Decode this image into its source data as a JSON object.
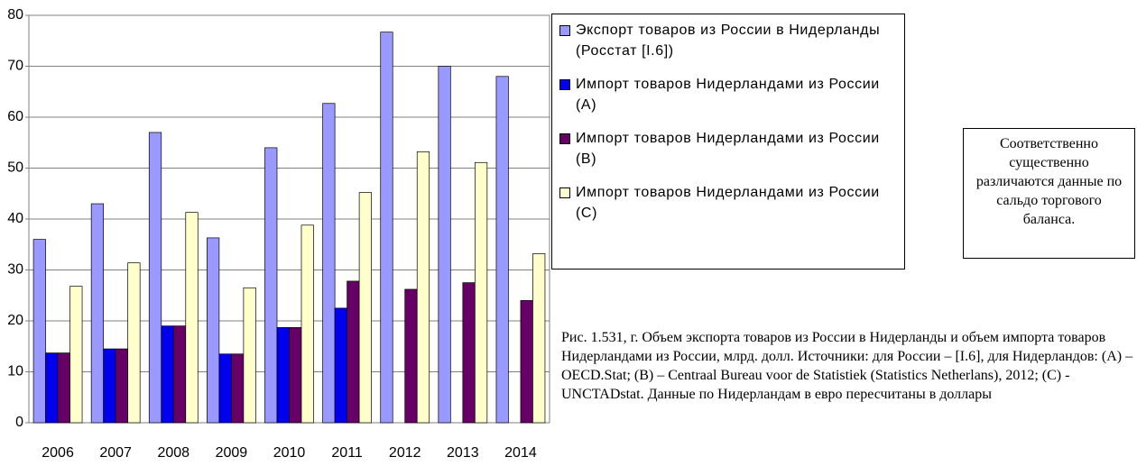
{
  "chart_data": {
    "type": "bar",
    "categories": [
      "2006",
      "2007",
      "2008",
      "2009",
      "2010",
      "2011",
      "2012",
      "2013",
      "2014"
    ],
    "series": [
      {
        "name": "Экспорт товаров из России в Нидерланды (Росстат [I.6])",
        "color": "#9999ff",
        "values": [
          36,
          43,
          57,
          36.3,
          54,
          62.7,
          76.7,
          70,
          68
        ]
      },
      {
        "name": "Импорт товаров Нидерландами из России (A)",
        "color": "#0000ee",
        "values": [
          13.7,
          14.5,
          19,
          13.5,
          18.7,
          22.5,
          null,
          null,
          null
        ]
      },
      {
        "name": "Импорт товаров Нидерландами из России (B)",
        "color": "#660066",
        "values": [
          13.7,
          14.5,
          19,
          13.5,
          18.7,
          27.8,
          26.2,
          27.5,
          24
        ]
      },
      {
        "name": "Импорт товаров Нидерландами из России (C)",
        "color": "#ffffcc",
        "values": [
          26.8,
          31.4,
          41.3,
          26.5,
          38.8,
          45.2,
          53.2,
          51.1,
          33.2
        ]
      }
    ],
    "ylim": [
      0,
      80
    ],
    "yticks": [
      0,
      10,
      20,
      30,
      40,
      50,
      60,
      70,
      80
    ],
    "grid": true,
    "note": "Соответственно существенно различаются данные по сальдо торгового баланса.",
    "caption": "Рис. 1.531, г. Объем экспорта товаров из России в Нидерланды и объем импорта товаров Нидерландами из России, млрд. долл. Источники: для России – [I.6], для Нидерландов: (A) – OECD.Stat; (B) – Centraal Bureau voor de Statistiek (Statistics Netherlans), 2012; (C) - UNCTADstat. Данные по Нидерландам в евро пересчитаны в доллары"
  }
}
